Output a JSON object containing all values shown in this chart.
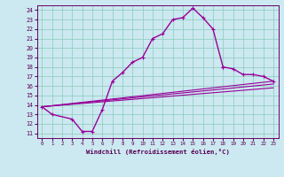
{
  "xlabel": "Windchill (Refroidissement éolien,°C)",
  "bg_color": "#cce8f0",
  "line_color": "#990099",
  "grid_color": "#88ccbb",
  "xlim": [
    -0.5,
    23.5
  ],
  "ylim": [
    10.5,
    24.5
  ],
  "xticks": [
    0,
    1,
    2,
    3,
    4,
    5,
    6,
    7,
    8,
    9,
    10,
    11,
    12,
    13,
    14,
    15,
    16,
    17,
    18,
    19,
    20,
    21,
    22,
    23
  ],
  "yticks": [
    11,
    12,
    13,
    14,
    15,
    16,
    17,
    18,
    19,
    20,
    21,
    22,
    23,
    24
  ],
  "line1_x": [
    0,
    1,
    3,
    4,
    5,
    6,
    7,
    8,
    9,
    10,
    11,
    12,
    13,
    14,
    15,
    16,
    17,
    18
  ],
  "line1_y": [
    13.8,
    13.0,
    12.5,
    11.2,
    11.2,
    13.5,
    16.5,
    17.4,
    18.5,
    19.0,
    21.0,
    21.5,
    23.0,
    23.2,
    24.2,
    23.2,
    22.0,
    18.0
  ],
  "line2_x": [
    18,
    19,
    20,
    21,
    22,
    23
  ],
  "line2_y": [
    18.0,
    17.8,
    17.2,
    17.2,
    17.0,
    16.5
  ],
  "line3_x": [
    0,
    23
  ],
  "line3_y": [
    13.8,
    16.5
  ],
  "line4_x": [
    0,
    23
  ],
  "line4_y": [
    13.8,
    16.2
  ],
  "line5_x": [
    0,
    23
  ],
  "line5_y": [
    13.8,
    15.8
  ]
}
